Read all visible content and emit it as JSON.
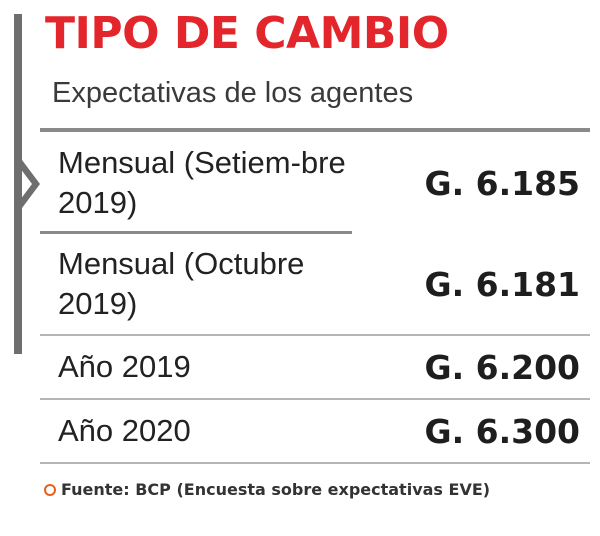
{
  "header": {
    "title": "TIPO DE CAMBIO",
    "subtitle": "Expectativas de los agentes"
  },
  "rows": [
    {
      "label": "Mensual (Setiem-bre 2019)",
      "value": "G. 6.185"
    },
    {
      "label": "Mensual (Octubre 2019)",
      "value": "G. 6.181"
    },
    {
      "label": "Año 2019",
      "value": "G. 6.200"
    },
    {
      "label": "Año 2020",
      "value": "G. 6.300"
    }
  ],
  "footer": {
    "source": "Fuente: BCP (Encuesta sobre expectativas EVE)"
  },
  "colors": {
    "title": "#e3262b",
    "bullet": "#e8611a",
    "bar": "#6e6e6e"
  },
  "icons": {
    "bullet": "circle-bullet-icon",
    "side": "chevron-right-icon"
  }
}
